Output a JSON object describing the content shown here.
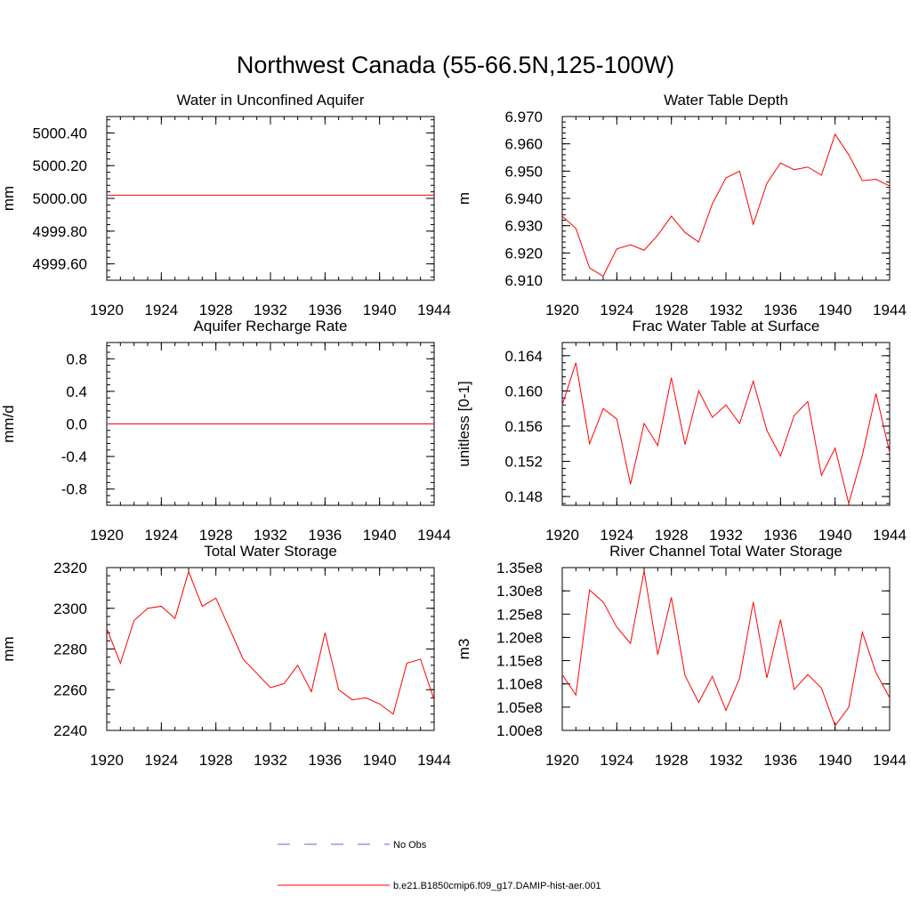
{
  "figure": {
    "title": "Northwest Canada (55-66.5N,125-100W)"
  },
  "legend": {
    "obs_label": "No Obs",
    "model_label": "b.e21.B1850cmip6.f09_g17.DAMIP-hist-aer.001",
    "obs_color": "#6666cc",
    "model_color": "#ff0000"
  },
  "chart_data": [
    {
      "type": "line",
      "title": "Water in Unconfined Aquifer",
      "ylabel": "mm",
      "xlim": [
        1920,
        1944
      ],
      "ylim": [
        4999.5,
        5000.5
      ],
      "xticks": [
        1920,
        1924,
        1928,
        1932,
        1936,
        1940,
        1944
      ],
      "xtick_labels": [
        "1920",
        "1924",
        "1928",
        "1932",
        "1936",
        "1940",
        "1944"
      ],
      "yticks": [
        4999.6,
        4999.8,
        5000.0,
        5000.2,
        5000.4
      ],
      "ytick_labels": [
        "4999.60",
        "4999.80",
        "5000.00",
        "5000.20",
        "5000.40"
      ],
      "minor_y": 0.04,
      "series": [
        {
          "color": "#ff0000",
          "x": [
            1920,
            1921,
            1922,
            1923,
            1924,
            1925,
            1926,
            1927,
            1928,
            1929,
            1930,
            1931,
            1932,
            1933,
            1934,
            1935,
            1936,
            1937,
            1938,
            1939,
            1940,
            1941,
            1942,
            1943,
            1944
          ],
          "values": [
            5000.02,
            5000.02,
            5000.02,
            5000.02,
            5000.02,
            5000.02,
            5000.02,
            5000.02,
            5000.02,
            5000.02,
            5000.02,
            5000.02,
            5000.02,
            5000.02,
            5000.02,
            5000.02,
            5000.02,
            5000.02,
            5000.02,
            5000.02,
            5000.02,
            5000.02,
            5000.02,
            5000.02,
            5000.02
          ]
        }
      ]
    },
    {
      "type": "line",
      "title": "Water Table Depth",
      "ylabel": "m",
      "xlim": [
        1920,
        1944
      ],
      "ylim": [
        6.91,
        6.97
      ],
      "xticks": [
        1920,
        1924,
        1928,
        1932,
        1936,
        1940,
        1944
      ],
      "xtick_labels": [
        "1920",
        "1924",
        "1928",
        "1932",
        "1936",
        "1940",
        "1944"
      ],
      "yticks": [
        6.91,
        6.92,
        6.93,
        6.94,
        6.95,
        6.96,
        6.97
      ],
      "ytick_labels": [
        "6.910",
        "6.920",
        "6.930",
        "6.940",
        "6.950",
        "6.960",
        "6.970"
      ],
      "minor_y": 0.002,
      "series": [
        {
          "color": "#ff0000",
          "x": [
            1920,
            1921,
            1922,
            1923,
            1924,
            1925,
            1926,
            1927,
            1928,
            1929,
            1930,
            1931,
            1932,
            1933,
            1934,
            1935,
            1936,
            1937,
            1938,
            1939,
            1940,
            1941,
            1942,
            1943,
            1944
          ],
          "values": [
            6.9335,
            6.929,
            6.9145,
            6.9115,
            6.9215,
            6.923,
            6.921,
            6.9265,
            6.9335,
            6.9275,
            6.924,
            6.938,
            6.9475,
            6.95,
            6.9305,
            6.9455,
            6.953,
            6.9505,
            6.9515,
            6.9485,
            6.9635,
            6.956,
            6.9465,
            6.947,
            6.9445
          ]
        }
      ]
    },
    {
      "type": "line",
      "title": "Aquifer Recharge Rate",
      "ylabel": "mm/d",
      "xlim": [
        1920,
        1944
      ],
      "ylim": [
        -1.0,
        1.0
      ],
      "xticks": [
        1920,
        1924,
        1928,
        1932,
        1936,
        1940,
        1944
      ],
      "xtick_labels": [
        "1920",
        "1924",
        "1928",
        "1932",
        "1936",
        "1940",
        "1944"
      ],
      "yticks": [
        -0.8,
        -0.4,
        0.0,
        0.4,
        0.8
      ],
      "ytick_labels": [
        "-0.8",
        "-0.4",
        "0.0",
        "0.4",
        "0.8"
      ],
      "minor_y": 0.08,
      "series": [
        {
          "color": "#ff0000",
          "x": [
            1920,
            1921,
            1922,
            1923,
            1924,
            1925,
            1926,
            1927,
            1928,
            1929,
            1930,
            1931,
            1932,
            1933,
            1934,
            1935,
            1936,
            1937,
            1938,
            1939,
            1940,
            1941,
            1942,
            1943,
            1944
          ],
          "values": [
            0,
            0,
            0,
            0,
            0,
            0,
            0,
            0,
            0,
            0,
            0,
            0,
            0,
            0,
            0,
            0,
            0,
            0,
            0,
            0,
            0,
            0,
            0,
            0,
            0
          ]
        }
      ]
    },
    {
      "type": "line",
      "title": "Frac Water Table at Surface",
      "ylabel": "unitless [0-1]",
      "xlim": [
        1920,
        1944
      ],
      "ylim": [
        0.147,
        0.1655
      ],
      "xticks": [
        1920,
        1924,
        1928,
        1932,
        1936,
        1940,
        1944
      ],
      "xtick_labels": [
        "1920",
        "1924",
        "1928",
        "1932",
        "1936",
        "1940",
        "1944"
      ],
      "yticks": [
        0.148,
        0.152,
        0.156,
        0.16,
        0.164
      ],
      "ytick_labels": [
        "0.148",
        "0.152",
        "0.156",
        "0.160",
        "0.164"
      ],
      "minor_y": 0.0008,
      "series": [
        {
          "color": "#ff0000",
          "x": [
            1920,
            1921,
            1922,
            1923,
            1924,
            1925,
            1926,
            1927,
            1928,
            1929,
            1930,
            1931,
            1932,
            1933,
            1934,
            1935,
            1936,
            1937,
            1938,
            1939,
            1940,
            1941,
            1942,
            1943,
            1944
          ],
          "values": [
            0.1584,
            0.1632,
            0.154,
            0.158,
            0.1568,
            0.1494,
            0.1563,
            0.1538,
            0.1615,
            0.1539,
            0.16,
            0.157,
            0.1584,
            0.1563,
            0.1611,
            0.1555,
            0.1526,
            0.1572,
            0.1588,
            0.1504,
            0.1535,
            0.1472,
            0.1527,
            0.1597,
            0.153
          ]
        }
      ]
    },
    {
      "type": "line",
      "title": "Total Water Storage",
      "ylabel": "mm",
      "xlim": [
        1920,
        1944
      ],
      "ylim": [
        2240,
        2320
      ],
      "xticks": [
        1920,
        1924,
        1928,
        1932,
        1936,
        1940,
        1944
      ],
      "xtick_labels": [
        "1920",
        "1924",
        "1928",
        "1932",
        "1936",
        "1940",
        "1944"
      ],
      "yticks": [
        2240,
        2260,
        2280,
        2300,
        2320
      ],
      "ytick_labels": [
        "2240",
        "2260",
        "2280",
        "2300",
        "2320"
      ],
      "minor_y": 4,
      "series": [
        {
          "color": "#ff0000",
          "x": [
            1920,
            1921,
            1922,
            1923,
            1924,
            1925,
            1926,
            1927,
            1928,
            1929,
            1930,
            1931,
            1932,
            1933,
            1934,
            1935,
            1936,
            1937,
            1938,
            1939,
            1940,
            1941,
            1942,
            1943,
            1944
          ],
          "values": [
            2290,
            2273,
            2294,
            2300,
            2301,
            2295,
            2318,
            2301,
            2305,
            2290,
            2275,
            2268,
            2261,
            2263,
            2272,
            2259,
            2288,
            2260,
            2255,
            2256,
            2253,
            2248,
            2273,
            2275,
            2255
          ]
        }
      ]
    },
    {
      "type": "line",
      "title": "River Channel Total Water Storage",
      "ylabel": "m3",
      "xlim": [
        1920,
        1944
      ],
      "ylim": [
        100000000.0,
        135000000.0
      ],
      "xticks": [
        1920,
        1924,
        1928,
        1932,
        1936,
        1940,
        1944
      ],
      "xtick_labels": [
        "1920",
        "1924",
        "1928",
        "1932",
        "1936",
        "1940",
        "1944"
      ],
      "yticks": [
        100000000.0,
        105000000.0,
        110000000.0,
        115000000.0,
        120000000.0,
        125000000.0,
        130000000.0,
        135000000.0
      ],
      "ytick_labels": [
        "1.00e8",
        "1.05e8",
        "1.10e8",
        "1.15e8",
        "1.20e8",
        "1.25e8",
        "1.30e8",
        "1.35e8"
      ],
      "minor_y": 10000000.0,
      "series": [
        {
          "color": "#ff0000",
          "x": [
            1920,
            1921,
            1922,
            1923,
            1924,
            1925,
            1926,
            1927,
            1928,
            1929,
            1930,
            1931,
            1932,
            1933,
            1934,
            1935,
            1936,
            1937,
            1938,
            1939,
            1940,
            1941,
            1942,
            1943,
            1944
          ],
          "values": [
            112000000.0,
            107600000.0,
            130200000.0,
            127600000.0,
            122200000.0,
            118700000.0,
            134300000.0,
            116300000.0,
            128600000.0,
            111800000.0,
            106000000.0,
            111600000.0,
            104300000.0,
            111200000.0,
            127600000.0,
            111300000.0,
            123800000.0,
            108800000.0,
            112000000.0,
            109100000.0,
            101000000.0,
            105000000.0,
            121100000.0,
            112400000.0,
            107000000.0
          ]
        }
      ]
    }
  ]
}
